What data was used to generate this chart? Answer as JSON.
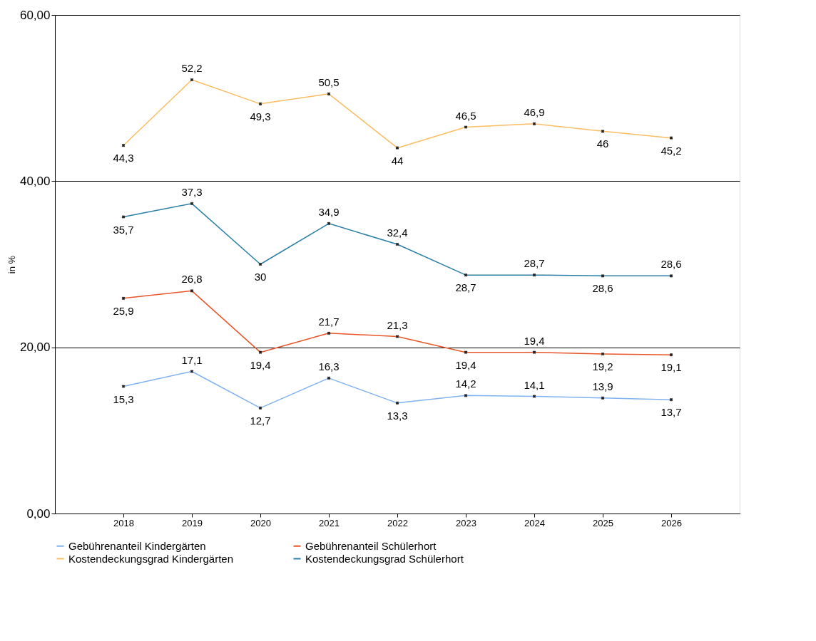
{
  "chart_data": {
    "type": "line",
    "ylabel": "in %",
    "categories": [
      "2018",
      "2019",
      "2020",
      "2021",
      "2022",
      "2023",
      "2024",
      "2025",
      "2026"
    ],
    "series": [
      {
        "name": "Gebührenanteil Kindergärten",
        "color": "#7fb2f0",
        "values": [
          15.3,
          17.1,
          12.7,
          16.3,
          13.3,
          14.2,
          14.1,
          13.9,
          13.7
        ],
        "value_labels": [
          "15,3",
          "17,1",
          "12,7",
          "16,3",
          "13,3",
          "14,2",
          "14,1",
          "13,9",
          "13,7"
        ]
      },
      {
        "name": "Gebührenanteil Schülerhort",
        "color": "#e8562a",
        "values": [
          25.9,
          26.8,
          19.4,
          21.7,
          21.3,
          19.4,
          19.4,
          19.2,
          19.1
        ],
        "value_labels": [
          "25,9",
          "26,8",
          "19,4",
          "21,7",
          "21,3",
          "19,4",
          "19,4",
          "19,2",
          "19,1"
        ]
      },
      {
        "name": "Kostendeckungsgrad Kindergärten",
        "color": "#fbbd63",
        "values": [
          44.3,
          52.2,
          49.3,
          50.5,
          44,
          46.5,
          46.9,
          46,
          45.2
        ],
        "value_labels": [
          "44,3",
          "52,2",
          "49,3",
          "50,5",
          "44",
          "46,5",
          "46,9",
          "46",
          "45,2"
        ]
      },
      {
        "name": "Kostendeckungsgrad Schülerhort",
        "color": "#2b7fa6",
        "values": [
          35.7,
          37.3,
          30,
          34.9,
          32.4,
          28.7,
          28.7,
          28.6,
          28.6
        ],
        "value_labels": [
          "35,7",
          "37,3",
          "30",
          "34,9",
          "32,4",
          "28,7",
          "28,7",
          "28,6",
          "28,6"
        ]
      }
    ],
    "ylim": [
      0,
      60
    ],
    "yticks": [
      {
        "value": 0,
        "label": "0,00"
      },
      {
        "value": 20,
        "label": "20,00"
      },
      {
        "value": 40,
        "label": "40,00"
      },
      {
        "value": 60,
        "label": "60,00"
      }
    ],
    "grid": "y",
    "legend": "bottom",
    "marker": "cross",
    "line_style": "solid"
  }
}
